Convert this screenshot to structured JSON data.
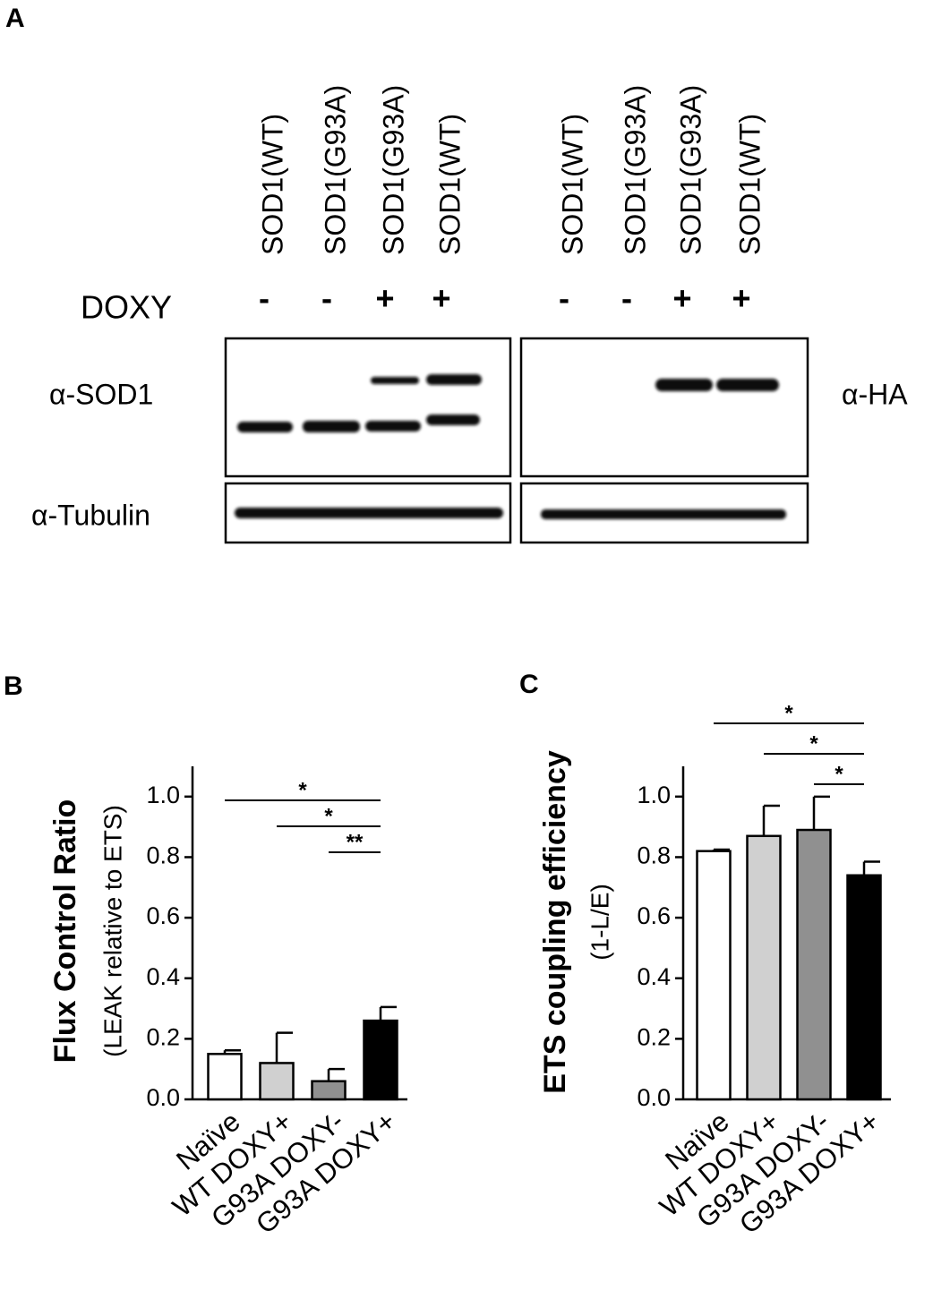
{
  "panel_labels": [
    "A",
    "B",
    "C"
  ],
  "blot": {
    "lanes_left": [
      "SOD1(WT)",
      "SOD1(G93A)",
      "SOD1(G93A)",
      "SOD1(WT)"
    ],
    "lanes_right": [
      "SOD1(WT)",
      "SOD1(G93A)",
      "SOD1(G93A)",
      "SOD1(WT)"
    ],
    "doxy_label": "DOXY",
    "doxy_left": [
      "-",
      "-",
      "+",
      "+"
    ],
    "doxy_right": [
      "-",
      "-",
      "+",
      "+"
    ],
    "row_labels": [
      "α-SOD1",
      "α-Tubulin"
    ],
    "right_label": "α-HA"
  },
  "chart_data": [
    {
      "type": "bar",
      "ylabel": "Flux Control Ratio",
      "ylabel_sub": "(LEAK relative to ETS)",
      "categories": [
        "Naïve",
        "WT DOXY+",
        "G93A DOXY-",
        "G93A DOXY+"
      ],
      "values": [
        0.15,
        0.12,
        0.06,
        0.26
      ],
      "errors": [
        0.012,
        0.1,
        0.04,
        0.045
      ],
      "colors": [
        "#ffffff",
        "#d0d0d0",
        "#909090",
        "#000000"
      ],
      "ylim": [
        0,
        1.1
      ],
      "yticks": [
        {
          "value": 0,
          "label": "0.0"
        },
        0.2,
        0.4,
        0.6,
        0.8,
        {
          "value": 1,
          "label": "1.0"
        }
      ],
      "comparisons": [
        {
          "label": "*",
          "between": [
            "Naïve",
            "G93A DOXY+"
          ]
        },
        {
          "label": "*",
          "between": [
            "WT DOXY+",
            "G93A DOXY+"
          ]
        },
        {
          "label": "**",
          "between": [
            "G93A DOXY-",
            "G93A DOXY+"
          ]
        }
      ]
    },
    {
      "type": "bar",
      "ylabel": "ETS coupling efficiency",
      "ylabel_sub": "(1-L/E)",
      "categories": [
        "Naïve",
        "WT DOXY+",
        "G93A DOXY-",
        "G93A DOXY+"
      ],
      "values": [
        0.82,
        0.87,
        0.89,
        0.74
      ],
      "errors": [
        0.005,
        0.1,
        0.11,
        0.045
      ],
      "colors": [
        "#ffffff",
        "#d0d0d0",
        "#909090",
        "#000000"
      ],
      "ylim": [
        0,
        1.1
      ],
      "yticks": [
        {
          "value": 0,
          "label": "0.0"
        },
        0.2,
        0.4,
        0.6,
        0.8,
        {
          "value": 1,
          "label": "1.0"
        }
      ],
      "comparisons": [
        {
          "label": "*",
          "between": [
            "Naïve",
            "G93A DOXY+"
          ]
        },
        {
          "label": "*",
          "between": [
            "WT DOXY+",
            "G93A DOXY+"
          ]
        },
        {
          "label": "*",
          "between": [
            "G93A DOXY-",
            "G93A DOXY+"
          ]
        }
      ]
    }
  ]
}
